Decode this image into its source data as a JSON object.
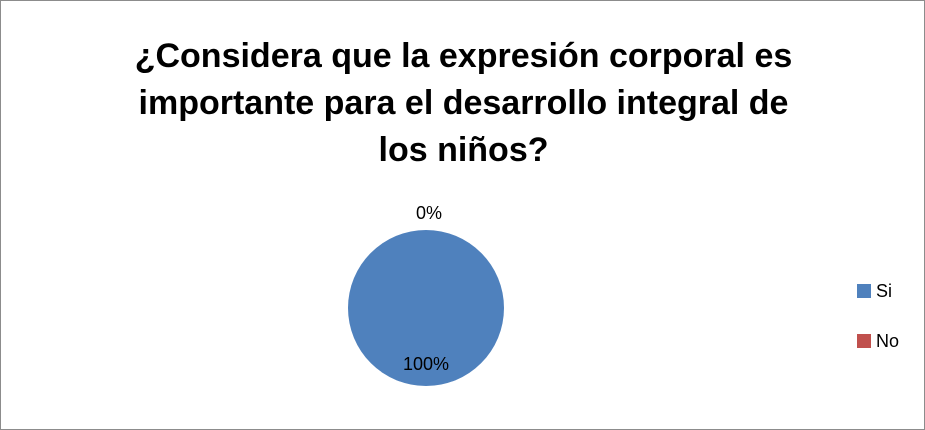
{
  "chart_data": {
    "type": "pie",
    "title": "¿Considera que la expresión corporal es importante para el desarrollo integral de los niños?",
    "title_lines": [
      "¿Considera que la expresión corporal es",
      "importante para el desarrollo integral  de",
      "los niños?"
    ],
    "slices": [
      {
        "label": "Si",
        "value": 100,
        "data_label": "100%",
        "color": "#4f81bd"
      },
      {
        "label": "No",
        "value": 0,
        "data_label": "0%",
        "color": "#c0504d"
      }
    ],
    "legend_position": "right",
    "legend": [
      {
        "label": "Si",
        "color": "#4f81bd"
      },
      {
        "label": "No",
        "color": "#c0504d"
      }
    ]
  }
}
